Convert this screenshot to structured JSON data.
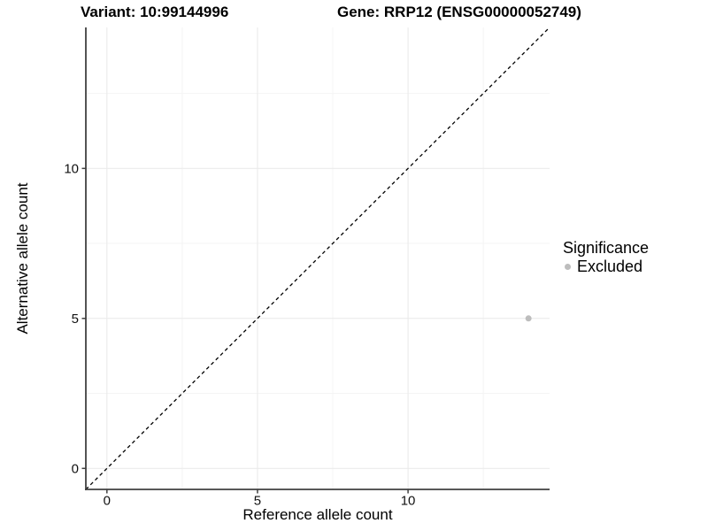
{
  "header": {
    "variant_title": "Variant: 10:99144996",
    "gene_title": "Gene: RRP12 (ENSG00000052749)"
  },
  "chart_data": {
    "type": "scatter",
    "title": "Variant: 10:99144996  Gene: RRP12 (ENSG00000052749)",
    "xlabel": "Reference allele count",
    "ylabel": "Alternative allele count",
    "x_axis": {
      "ticks": [
        0,
        5,
        10
      ],
      "minor_ticks": [
        2.5,
        7.5,
        12.5
      ],
      "range": [
        -0.7,
        14.7
      ]
    },
    "y_axis": {
      "ticks": [
        0,
        5,
        10
      ],
      "minor_ticks": [
        2.5,
        7.5,
        12.5
      ],
      "range": [
        -0.7,
        14.7
      ]
    },
    "points": [
      {
        "x": 14,
        "y": 5,
        "series": "Excluded"
      }
    ],
    "reference_line": {
      "slope": 1,
      "intercept": 0,
      "style": "dashed",
      "color": "#000000"
    },
    "legend": {
      "title": "Significance",
      "position": "right",
      "items": [
        {
          "label": "Excluded",
          "color": "#bdbdbd"
        }
      ]
    },
    "colors": {
      "point_excluded": "#bdbdbd",
      "grid_major": "#e9e9e9",
      "grid_minor": "#f4f4f4",
      "axis": "#404040",
      "tick_label": "#111111"
    },
    "grid": true
  }
}
